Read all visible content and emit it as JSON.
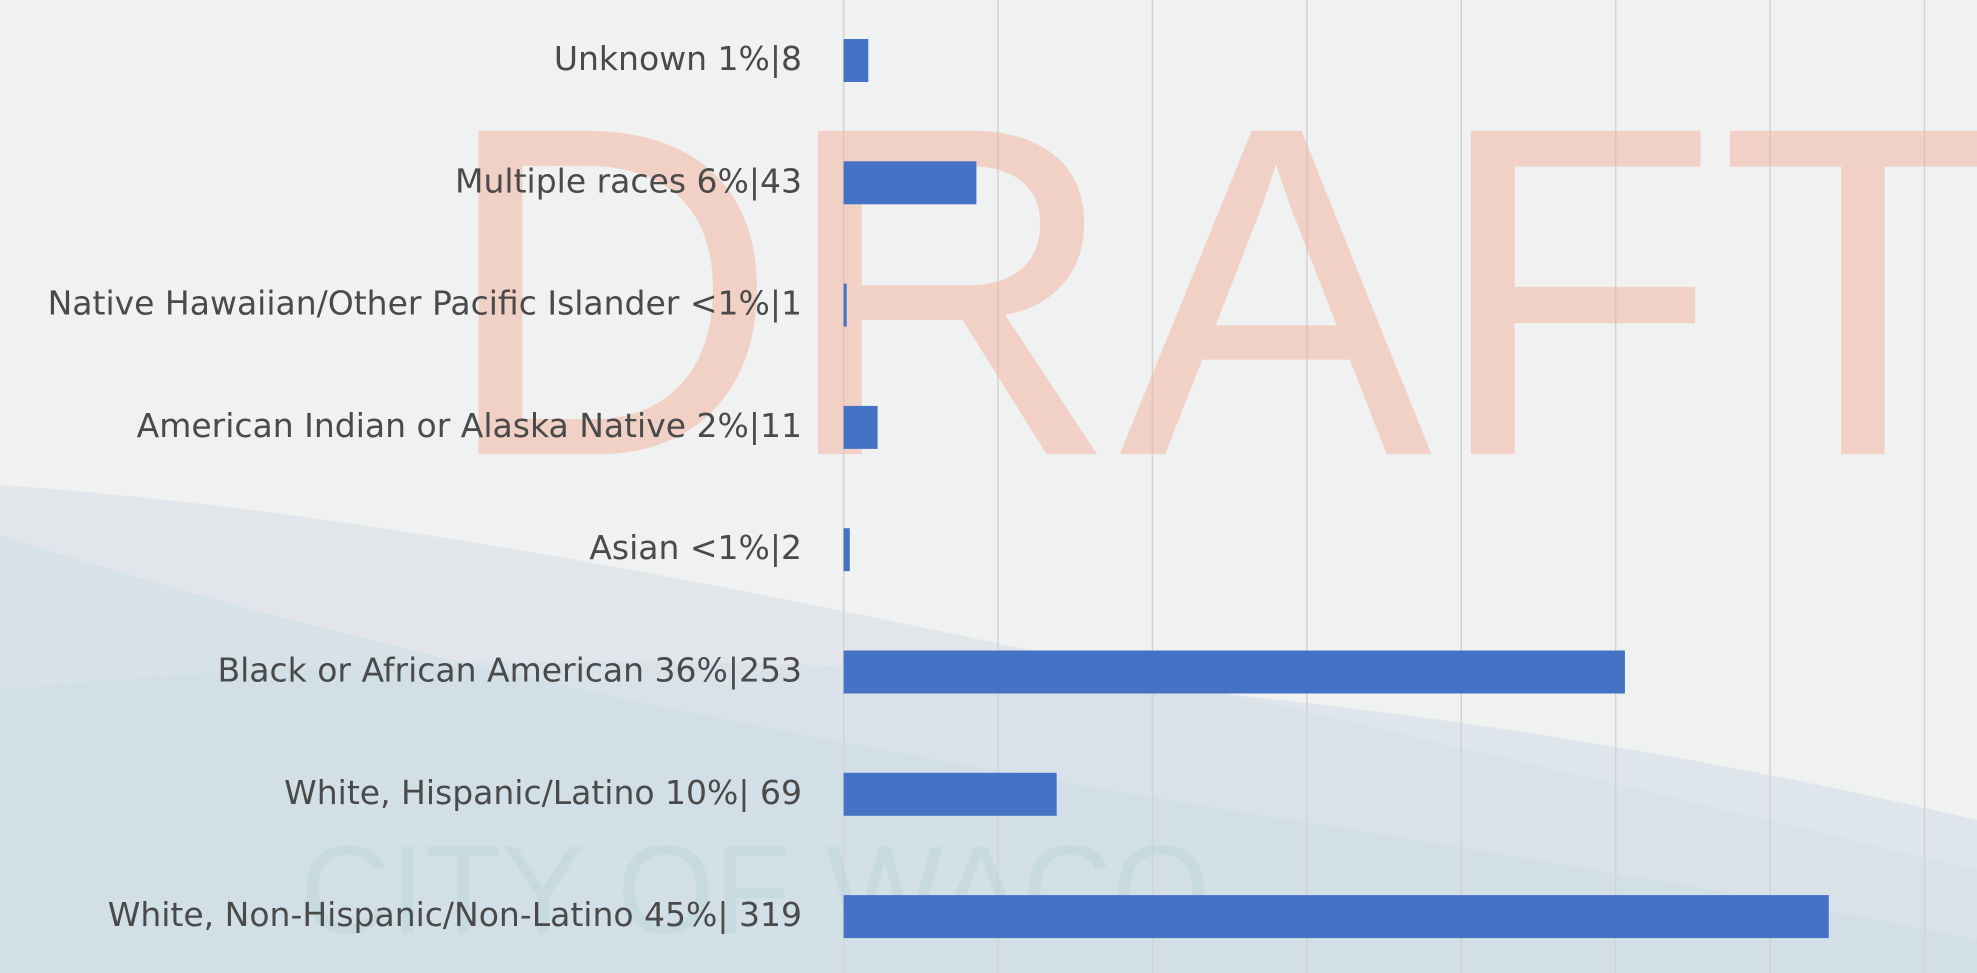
{
  "chart_data": {
    "type": "bar",
    "orientation": "horizontal",
    "categories": [
      "Unknown 1%|8",
      "Multiple races 6%|43",
      "Native Hawaiian/Other Pacific Islander <1%|1",
      "American Indian or Alaska Native 2%|11",
      "Asian <1%|2",
      "Black or African American 36%|253",
      "White, Hispanic/Latino 10%| 69",
      "White, Non-Hispanic/Non-Latino 45%| 319"
    ],
    "values": [
      8,
      43,
      1,
      11,
      2,
      253,
      69,
      319
    ],
    "color": "#4472c4",
    "xlim": [
      0,
      367
    ],
    "xticks": [
      0,
      50,
      100,
      150,
      200,
      250,
      300,
      350
    ],
    "grid": true,
    "watermark": "DRAFT",
    "logo_text": "CITY OF WACO"
  }
}
